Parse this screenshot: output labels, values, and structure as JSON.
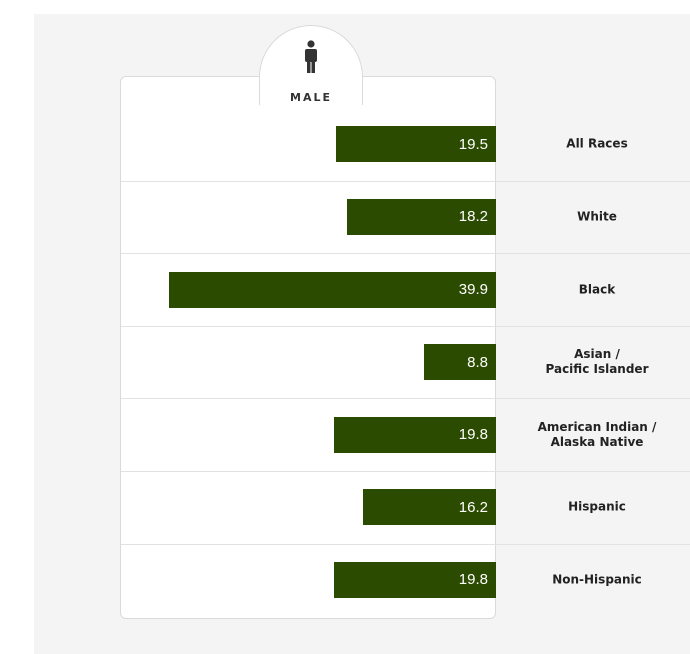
{
  "header": {
    "gender_label": "MALE",
    "icon": "male-person-icon"
  },
  "colors": {
    "bar": "#2b4c00",
    "bar_text": "#ffffff",
    "panel_background": "#f4f4f4",
    "card_background": "#ffffff"
  },
  "chart_data": {
    "type": "bar",
    "orientation": "horizontal",
    "categories": [
      "All Races",
      "White",
      "Black",
      "Asian /\nPacific Islander",
      "American Indian /\nAlaska Native",
      "Hispanic",
      "Non-Hispanic"
    ],
    "series": [
      {
        "values": [
          19.5,
          18.2,
          39.9,
          8.8,
          19.8,
          16.2,
          19.8
        ]
      }
    ],
    "xlim": [
      0,
      40
    ],
    "grid": false,
    "legend": "none"
  }
}
